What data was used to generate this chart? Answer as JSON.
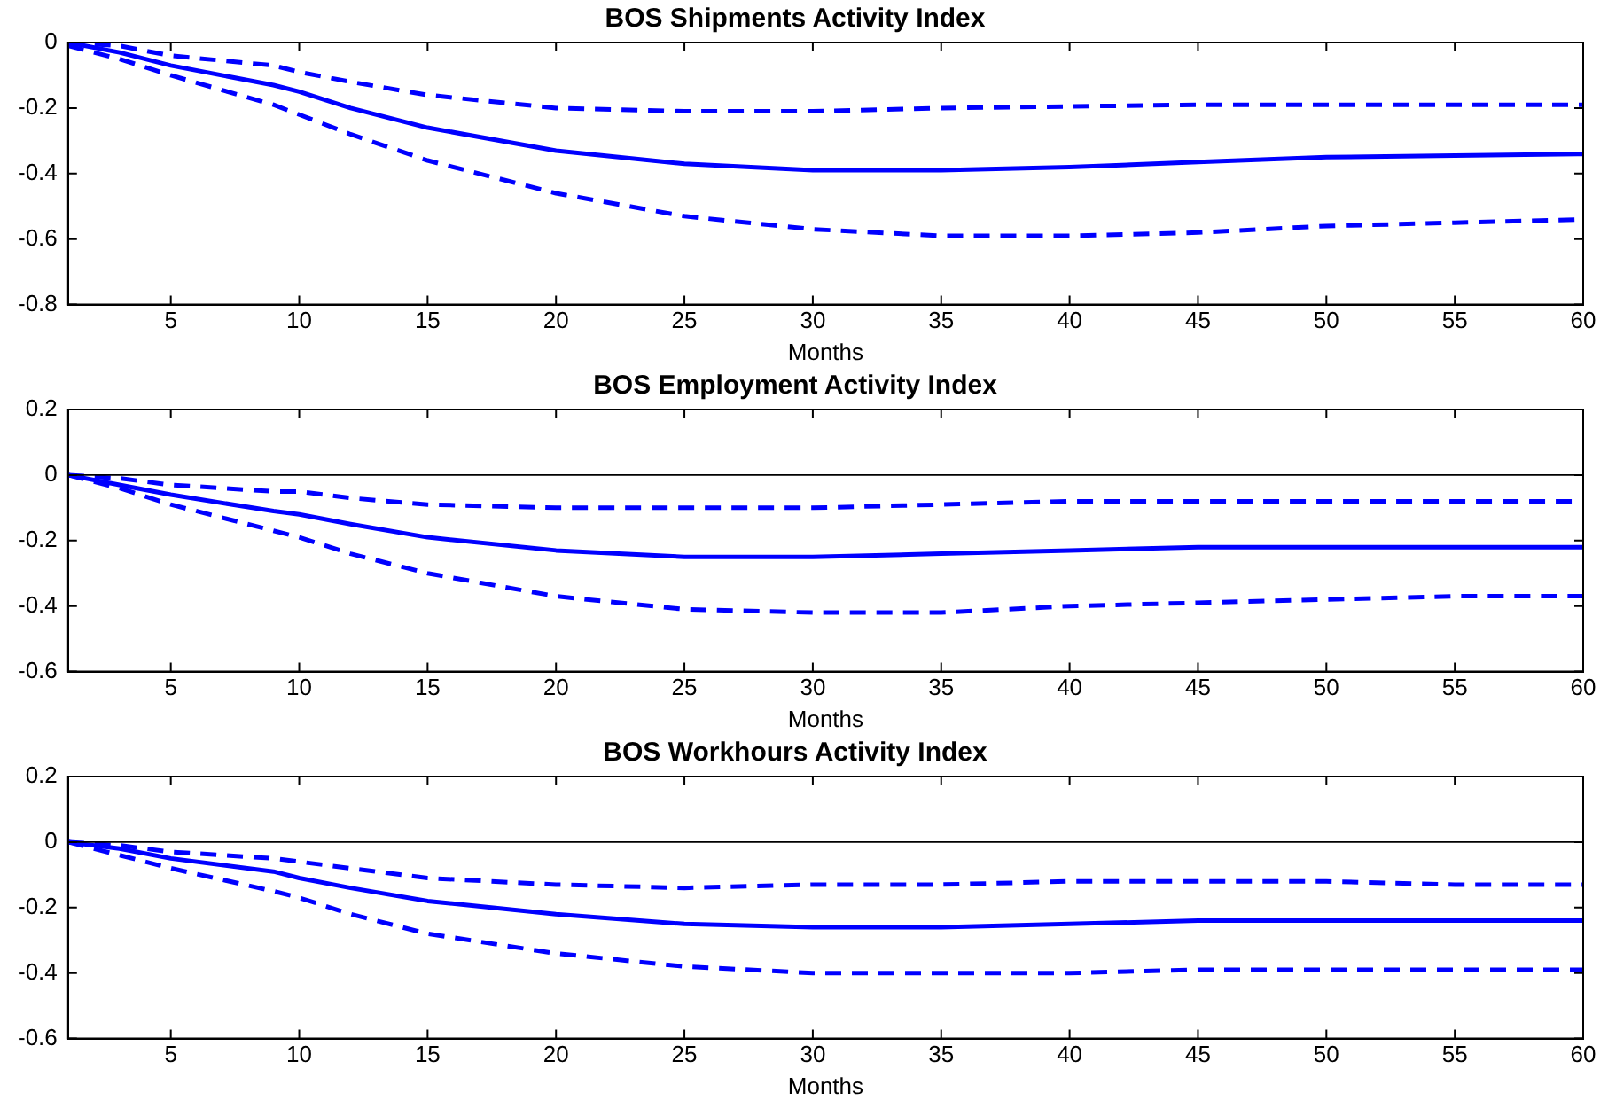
{
  "chart_data": [
    {
      "type": "line",
      "title": "BOS Shipments Activity Index",
      "xlabel": "Months",
      "xlim": [
        1,
        60
      ],
      "xticks": [
        5,
        10,
        15,
        20,
        25,
        30,
        35,
        40,
        45,
        50,
        55,
        60
      ],
      "ylim": [
        -0.8,
        0
      ],
      "yticks": [
        -0.8,
        -0.6,
        -0.4,
        -0.2,
        0
      ],
      "grid": false,
      "legend": false,
      "x": [
        1,
        3,
        5,
        9,
        10,
        12,
        15,
        20,
        25,
        30,
        35,
        40,
        45,
        50,
        55,
        60
      ],
      "series": [
        {
          "color": "#0000ff",
          "line_style": "solid",
          "values": [
            0,
            -0.03,
            -0.07,
            -0.13,
            -0.15,
            -0.2,
            -0.26,
            -0.33,
            -0.37,
            -0.39,
            -0.39,
            -0.38,
            -0.365,
            -0.35,
            -0.345,
            -0.34
          ]
        },
        {
          "color": "#0000ff",
          "line_style": "dashed",
          "values": [
            0,
            -0.01,
            -0.04,
            -0.07,
            -0.09,
            -0.12,
            -0.16,
            -0.2,
            -0.21,
            -0.21,
            -0.2,
            -0.195,
            -0.19,
            -0.19,
            -0.19,
            -0.19
          ]
        },
        {
          "color": "#0000ff",
          "line_style": "dashed",
          "values": [
            -0.01,
            -0.05,
            -0.1,
            -0.19,
            -0.22,
            -0.28,
            -0.36,
            -0.46,
            -0.53,
            -0.57,
            -0.59,
            -0.59,
            -0.58,
            -0.56,
            -0.55,
            -0.54
          ]
        }
      ]
    },
    {
      "type": "line",
      "title": "BOS Employment Activity Index",
      "xlabel": "Months",
      "xlim": [
        1,
        60
      ],
      "xticks": [
        5,
        10,
        15,
        20,
        25,
        30,
        35,
        40,
        45,
        50,
        55,
        60
      ],
      "ylim": [
        -0.6,
        0.2
      ],
      "yticks": [
        -0.6,
        -0.4,
        -0.2,
        0,
        0.2
      ],
      "grid": false,
      "legend": false,
      "ref_lines": [
        {
          "axis": "y",
          "value": 0,
          "color": "#000000"
        }
      ],
      "x": [
        1,
        3,
        5,
        9,
        10,
        12,
        15,
        20,
        25,
        30,
        35,
        40,
        45,
        50,
        55,
        60
      ],
      "series": [
        {
          "color": "#0000ff",
          "line_style": "solid",
          "values": [
            0,
            -0.03,
            -0.06,
            -0.11,
            -0.12,
            -0.15,
            -0.19,
            -0.23,
            -0.25,
            -0.25,
            -0.24,
            -0.23,
            -0.22,
            -0.22,
            -0.22,
            -0.22
          ]
        },
        {
          "color": "#0000ff",
          "line_style": "dashed",
          "values": [
            0,
            -0.01,
            -0.03,
            -0.05,
            -0.05,
            -0.07,
            -0.09,
            -0.1,
            -0.1,
            -0.1,
            -0.09,
            -0.08,
            -0.08,
            -0.08,
            -0.08,
            -0.08
          ]
        },
        {
          "color": "#0000ff",
          "line_style": "dashed",
          "values": [
            0,
            -0.04,
            -0.09,
            -0.17,
            -0.19,
            -0.24,
            -0.3,
            -0.37,
            -0.41,
            -0.42,
            -0.42,
            -0.4,
            -0.39,
            -0.38,
            -0.37,
            -0.37
          ]
        }
      ]
    },
    {
      "type": "line",
      "title": "BOS Workhours Activity Index",
      "xlabel": "Months",
      "xlim": [
        1,
        60
      ],
      "xticks": [
        5,
        10,
        15,
        20,
        25,
        30,
        35,
        40,
        45,
        50,
        55,
        60
      ],
      "ylim": [
        -0.6,
        0.2
      ],
      "yticks": [
        -0.6,
        -0.4,
        -0.2,
        0,
        0.2
      ],
      "grid": false,
      "legend": false,
      "ref_lines": [
        {
          "axis": "y",
          "value": 0,
          "color": "#000000"
        }
      ],
      "x": [
        1,
        3,
        5,
        9,
        10,
        12,
        15,
        20,
        25,
        30,
        35,
        40,
        45,
        50,
        55,
        60
      ],
      "series": [
        {
          "color": "#0000ff",
          "line_style": "solid",
          "values": [
            0,
            -0.02,
            -0.05,
            -0.09,
            -0.11,
            -0.14,
            -0.18,
            -0.22,
            -0.25,
            -0.26,
            -0.26,
            -0.25,
            -0.24,
            -0.24,
            -0.24,
            -0.24
          ]
        },
        {
          "color": "#0000ff",
          "line_style": "dashed",
          "values": [
            0,
            -0.01,
            -0.03,
            -0.05,
            -0.06,
            -0.08,
            -0.11,
            -0.13,
            -0.14,
            -0.13,
            -0.13,
            -0.12,
            -0.12,
            -0.12,
            -0.13,
            -0.13
          ]
        },
        {
          "color": "#0000ff",
          "line_style": "dashed",
          "values": [
            0,
            -0.04,
            -0.08,
            -0.15,
            -0.17,
            -0.22,
            -0.28,
            -0.34,
            -0.38,
            -0.4,
            -0.4,
            -0.4,
            -0.39,
            -0.39,
            -0.39,
            -0.39
          ]
        }
      ]
    }
  ]
}
